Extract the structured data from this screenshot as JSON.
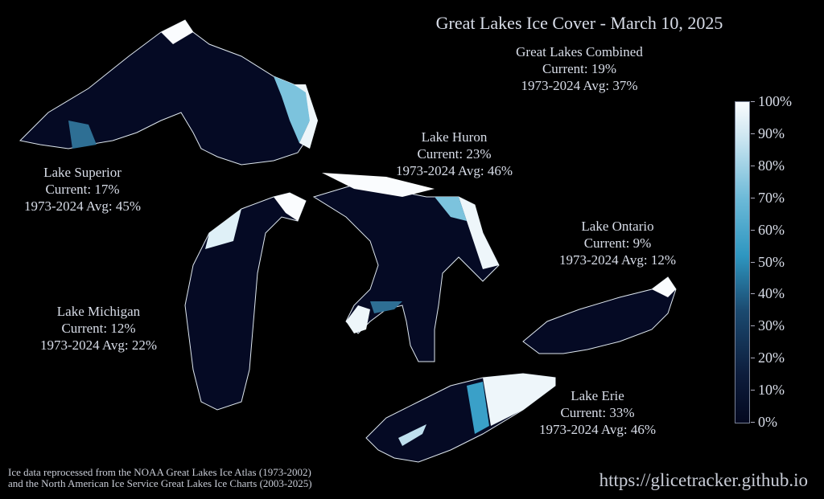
{
  "title": "Great Lakes Ice Cover - March 10, 2025",
  "combined": {
    "name": "Great Lakes Combined",
    "current": "Current: 19%",
    "avg": "1973-2024 Avg: 37%"
  },
  "lakes": [
    {
      "id": "superior",
      "name": "Lake Superior",
      "current": "Current: 17%",
      "avg": "1973-2024 Avg: 45%"
    },
    {
      "id": "michigan",
      "name": "Lake Michigan",
      "current": "Current: 12%",
      "avg": "1973-2024 Avg: 22%"
    },
    {
      "id": "huron",
      "name": "Lake Huron",
      "current": "Current: 23%",
      "avg": "1973-2024 Avg: 46%"
    },
    {
      "id": "ontario",
      "name": "Lake Ontario",
      "current": "Current: 9%",
      "avg": "1973-2024 Avg: 12%"
    },
    {
      "id": "erie",
      "name": "Lake Erie",
      "current": "Current: 33%",
      "avg": "1973-2024 Avg: 46%"
    }
  ],
  "colorbar": {
    "ticks": [
      "0%",
      "10%",
      "20%",
      "30%",
      "40%",
      "50%",
      "60%",
      "70%",
      "80%",
      "90%",
      "100%"
    ],
    "colors": {
      "low": "#03081f",
      "mid": "#2e96c0",
      "high": "#fafcfe"
    }
  },
  "credit": [
    "Ice data reprocessed from the NOAA Great Lakes Ice Atlas (1973-2002)",
    "and the North American Ice Service Great Lakes Ice Charts (2003-2025)"
  ],
  "url": "https://glicetracker.github.io"
}
